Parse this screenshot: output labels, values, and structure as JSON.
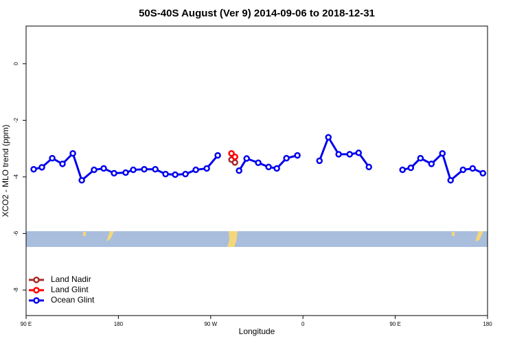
{
  "chart_data": {
    "type": "line",
    "title": "50S-40S August (Ver 9)   2014-09-06 to 2018-12-31",
    "x_label": "Longitude",
    "y_label": "XCO2 - MLO trend (ppm)",
    "xlim": [
      90,
      540
    ],
    "ylim": [
      -8.9,
      1.33
    ],
    "xticks": [
      {
        "value": 90,
        "label": "90 E"
      },
      180,
      {
        "value": 270,
        "label": "90 W"
      },
      {
        "value": 360,
        "label": "0"
      },
      {
        "value": 450,
        "label": "90 E"
      },
      {
        "value": 540,
        "label": "180"
      }
    ],
    "yticks": [
      0,
      -2,
      -4,
      -6,
      -8
    ],
    "legend": "bottom-left",
    "series": [
      {
        "name": "Land Nadir",
        "color": "#a52a2a",
        "x": [
          290.3,
          293.7
        ],
        "values": [
          -3.39,
          -3.49
        ]
      },
      {
        "name": "Land Glint",
        "color": "#ff0000",
        "x": [
          290.3,
          293.7
        ],
        "values": [
          -3.17,
          -3.29
        ]
      },
      {
        "name": "Ocean Glint",
        "color": "#0000ee",
        "x": [
          97.4,
          105.4,
          115.5,
          125.5,
          135.6,
          144.3,
          156.3,
          165.7,
          175.8,
          187.1,
          194.5,
          205.2,
          216.0,
          226.0,
          235.4,
          245.4,
          255.5,
          266.2,
          276.9,
          null,
          297.7,
          305.1,
          316.4,
          326.5,
          334.5,
          343.9,
          354.6,
          null,
          376.1,
          384.8,
          394.8,
          405.6,
          414.3,
          424.3,
          null,
          457.1,
          465.2,
          474.6,
          485.3,
          496.0,
          504.0,
          516.1,
          525.5,
          535.5
        ],
        "values": [
          -3.73,
          -3.66,
          -3.34,
          -3.54,
          -3.17,
          -4.12,
          -3.75,
          -3.7,
          -3.87,
          -3.85,
          -3.75,
          -3.73,
          -3.73,
          -3.9,
          -3.92,
          -3.9,
          -3.75,
          -3.7,
          -3.24,
          null,
          -3.78,
          -3.35,
          -3.5,
          -3.65,
          -3.7,
          -3.34,
          -3.24,
          null,
          -3.43,
          -2.6,
          -3.2,
          -3.2,
          -3.15,
          -3.65,
          null,
          -3.75,
          -3.68,
          -3.34,
          -3.54,
          -3.17,
          -4.12,
          -3.75,
          -3.7,
          -3.87
        ]
      }
    ]
  }
}
